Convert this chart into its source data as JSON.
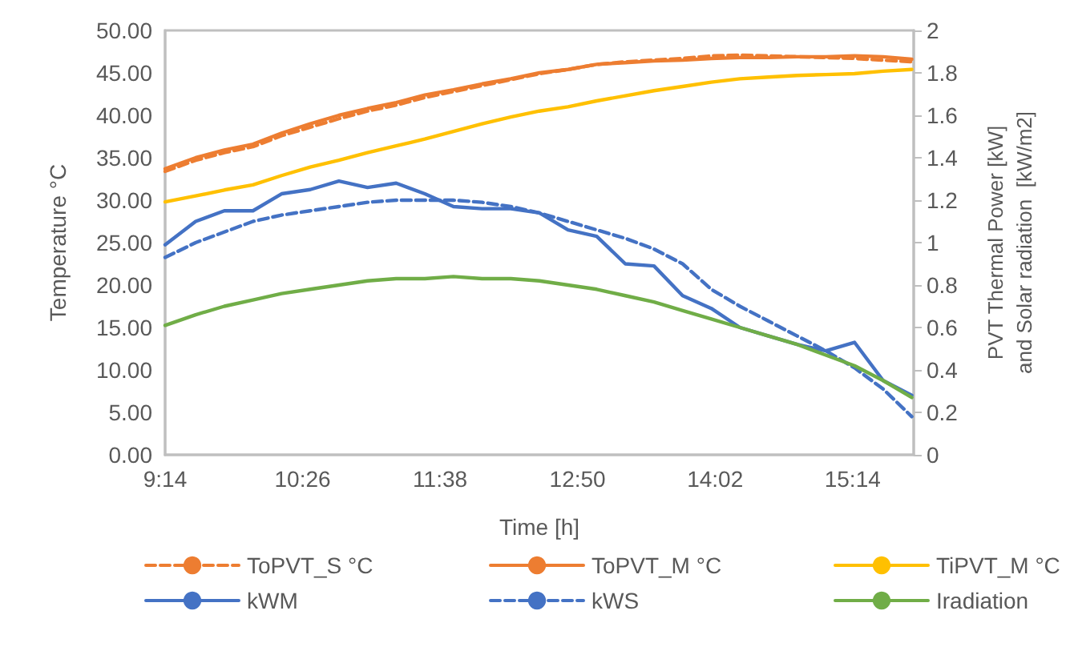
{
  "chart_data": {
    "type": "line",
    "xlabel": "Time [h]",
    "ylabel": "Temperature °C",
    "y2label": "PVT Thermal Power [kW]\nand Solar radiation  [kW/m2]",
    "x": [
      9.2333,
      9.5,
      9.75,
      10,
      10.25,
      10.5,
      10.75,
      11,
      11.25,
      11.5,
      11.75,
      12,
      12.25,
      12.5,
      12.75,
      13,
      13.25,
      13.5,
      13.75,
      14,
      14.25,
      14.5,
      14.75,
      15,
      15.25,
      15.5,
      15.75
    ],
    "xlim": [
      9.2333,
      15.7667
    ],
    "xticks": [
      {
        "value": 9.2333,
        "label": "9:14"
      },
      {
        "value": 10.4333,
        "label": "10:26"
      },
      {
        "value": 11.6333,
        "label": "11:38"
      },
      {
        "value": 12.8333,
        "label": "12:50"
      },
      {
        "value": 14.0333,
        "label": "14:02"
      },
      {
        "value": 15.2333,
        "label": "15:14"
      }
    ],
    "ylim": [
      0,
      50
    ],
    "yticks": [
      {
        "value": 0,
        "label": "0.00"
      },
      {
        "value": 5,
        "label": "5.00"
      },
      {
        "value": 10,
        "label": "10.00"
      },
      {
        "value": 15,
        "label": "15.00"
      },
      {
        "value": 20,
        "label": "20.00"
      },
      {
        "value": 25,
        "label": "25.00"
      },
      {
        "value": 30,
        "label": "30.00"
      },
      {
        "value": 35,
        "label": "35.00"
      },
      {
        "value": 40,
        "label": "40.00"
      },
      {
        "value": 45,
        "label": "45.00"
      },
      {
        "value": 50,
        "label": "50.00"
      }
    ],
    "y2lim": [
      0,
      2
    ],
    "y2ticks": [
      0,
      0.2,
      0.4,
      0.6,
      0.8,
      1,
      1.2,
      1.4,
      1.6,
      1.8,
      2
    ],
    "grid": false,
    "legend": "bottom",
    "marker": "none",
    "series": [
      {
        "name": "ToPVT_S °C",
        "color": "#ed7d31",
        "line_style": "dashed",
        "values": [
          33.4,
          34.7,
          35.6,
          36.3,
          37.6,
          38.6,
          39.6,
          40.5,
          41.2,
          42.1,
          42.8,
          43.5,
          44.2,
          44.9,
          45.4,
          46.0,
          46.3,
          46.5,
          46.7,
          47.0,
          47.1,
          47.0,
          46.9,
          46.8,
          46.7,
          46.5,
          46.3
        ]
      },
      {
        "name": "ToPVT_M °C",
        "color": "#ed7d31",
        "line_style": "solid",
        "values": [
          33.7,
          35.0,
          35.9,
          36.6,
          37.9,
          39.0,
          40.0,
          40.8,
          41.5,
          42.4,
          43.0,
          43.7,
          44.3,
          45.0,
          45.4,
          46.0,
          46.2,
          46.4,
          46.5,
          46.7,
          46.8,
          46.8,
          46.9,
          46.9,
          47.0,
          46.9,
          46.6
        ]
      },
      {
        "name": "TiPVT_M °C",
        "color": "#ffc000",
        "line_style": "solid",
        "values": [
          29.8,
          30.5,
          31.2,
          31.8,
          32.9,
          33.9,
          34.7,
          35.6,
          36.4,
          37.2,
          38.1,
          39.0,
          39.8,
          40.5,
          41.0,
          41.7,
          42.3,
          42.9,
          43.4,
          43.9,
          44.3,
          44.5,
          44.7,
          44.8,
          44.9,
          45.2,
          45.4
        ]
      },
      {
        "name": "kWM",
        "color": "#4472c4",
        "line_style": "solid",
        "axis": "y2",
        "values": [
          0.99,
          1.1,
          1.15,
          1.15,
          1.23,
          1.25,
          1.29,
          1.26,
          1.28,
          1.23,
          1.17,
          1.16,
          1.16,
          1.14,
          1.06,
          1.03,
          0.9,
          0.89,
          0.75,
          0.69,
          0.6,
          0.56,
          0.52,
          0.49,
          0.53,
          0.35,
          0.28
        ]
      },
      {
        "name": "kWS",
        "color": "#4472c4",
        "line_style": "dashed",
        "axis": "y2",
        "values": [
          0.93,
          1.0,
          1.05,
          1.1,
          1.13,
          1.15,
          1.17,
          1.19,
          1.2,
          1.2,
          1.2,
          1.19,
          1.17,
          1.14,
          1.1,
          1.06,
          1.02,
          0.97,
          0.9,
          0.78,
          0.7,
          0.63,
          0.56,
          0.49,
          0.41,
          0.31,
          0.18
        ]
      },
      {
        "name": "Iradiation",
        "color": "#70ad47",
        "line_style": "solid",
        "axis": "y2",
        "values": [
          0.61,
          0.66,
          0.7,
          0.73,
          0.76,
          0.78,
          0.8,
          0.82,
          0.83,
          0.83,
          0.84,
          0.83,
          0.83,
          0.82,
          0.8,
          0.78,
          0.75,
          0.72,
          0.68,
          0.64,
          0.6,
          0.56,
          0.52,
          0.47,
          0.42,
          0.35,
          0.27
        ]
      }
    ]
  }
}
